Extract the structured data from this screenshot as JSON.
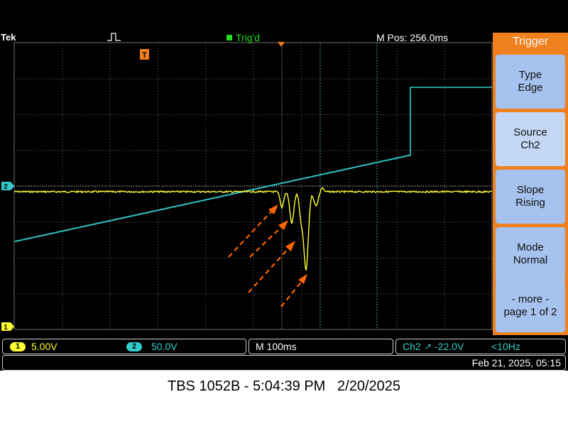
{
  "header": {
    "brand": "Tek",
    "trigger_status": "Trig'd",
    "horizontal_position": "M Pos: 256.0ms",
    "trigger_marker": "T",
    "ch2_marker": "2",
    "ch1_marker": "1"
  },
  "trigger_menu": {
    "title": "Trigger",
    "buttons": [
      {
        "line1": "Type",
        "line2": "Edge"
      },
      {
        "line1": "Source",
        "line2": "Ch2"
      },
      {
        "line1": "Slope",
        "line2": "Rising"
      },
      {
        "line1": "Mode",
        "line2": "Normal"
      },
      {
        "line1": "- more -",
        "line2": "page 1 of 2"
      }
    ]
  },
  "status_bar": {
    "ch1_label": "1",
    "ch1_scale": "5.00V",
    "ch2_label": "2",
    "ch2_scale": "50.0V",
    "timebase": "M 100ms",
    "trigger_source": "Ch2",
    "trigger_slope_symbol": "↗",
    "trigger_level": "-22.0V",
    "trigger_freq": "<10Hz",
    "datetime": "Feb 21, 2025, 05:15"
  },
  "footer": {
    "caption": "TBS 1052B - 5:04:39 PM   2/20/2025"
  },
  "colors": {
    "ch1": "#ffff33",
    "ch2": "#33cccc",
    "accent": "#f07f1e",
    "menu_button": "#a6c2ee",
    "trig_status": "#22dd22",
    "annotation_arrow": "#ff6600"
  }
}
